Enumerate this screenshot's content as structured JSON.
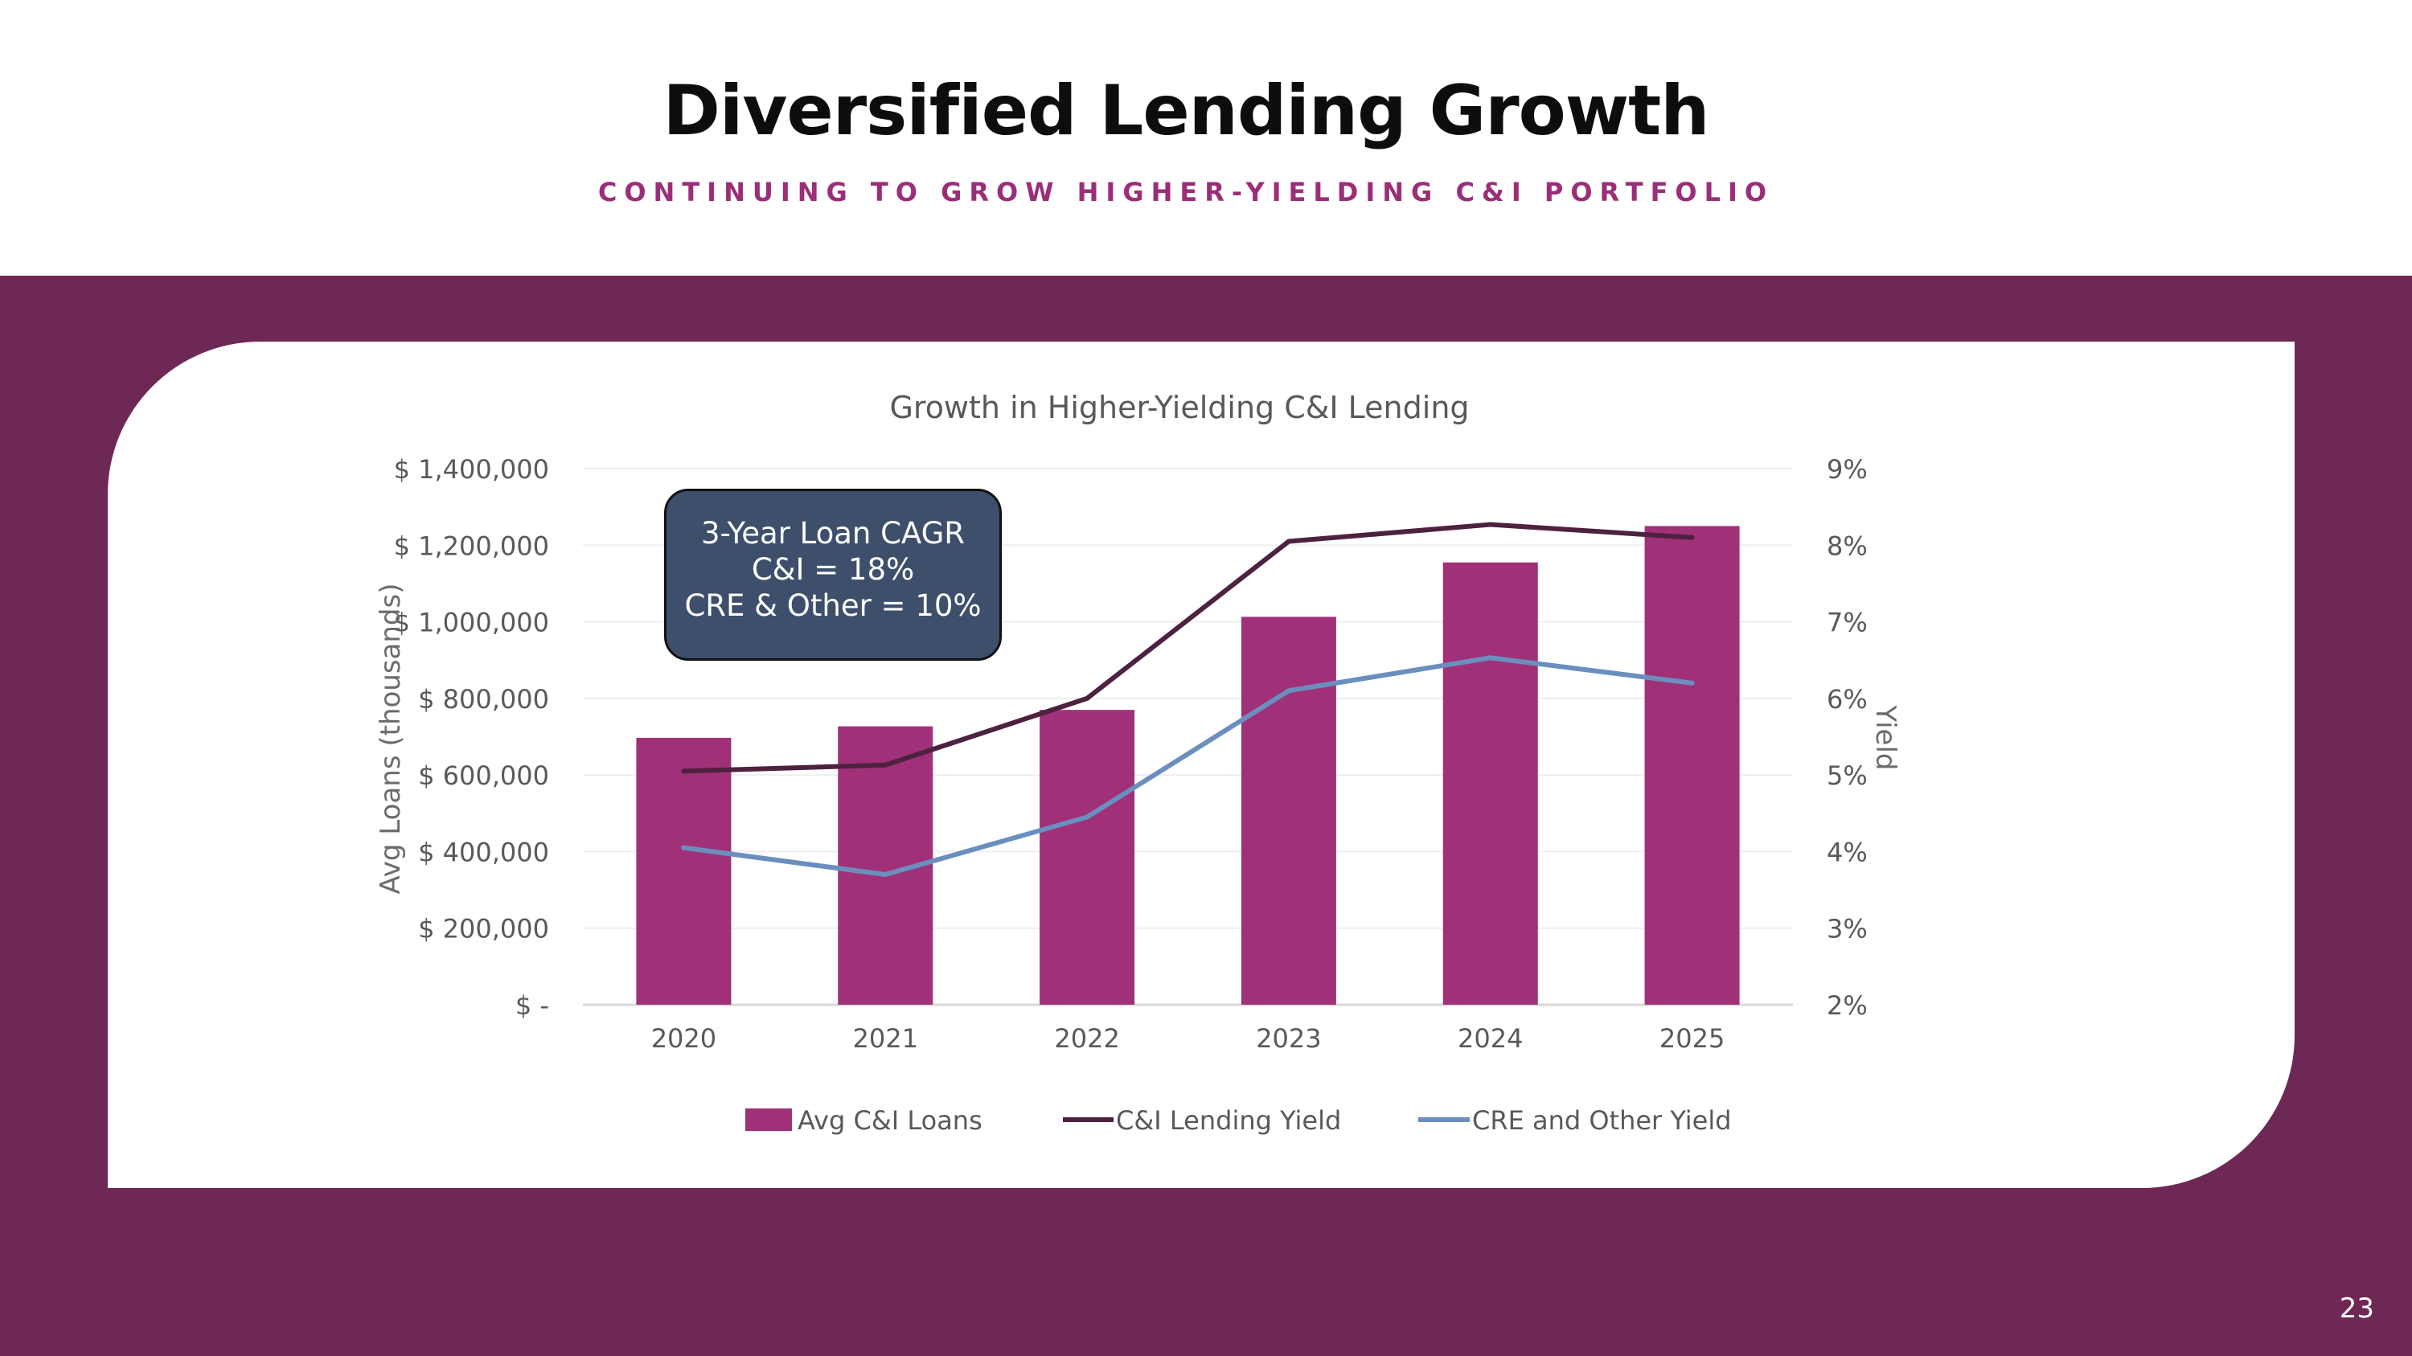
{
  "title": "Diversified Lending Growth",
  "subtitle": "CONTINUING TO GROW HIGHER-YIELDING C&I PORTFOLIO",
  "page_number": "23",
  "callout": {
    "line1": "3-Year Loan CAGR",
    "line2": "C&I = 18%",
    "line3": "CRE & Other = 10%"
  },
  "colors": {
    "band": "#6e2856",
    "bars": "#a03178",
    "ci_line": "#4e2140",
    "cre_line": "#6a8fbf",
    "callout_bg": "#3d4f6b",
    "subtitle": "#9b2e78"
  },
  "chart_data": {
    "type": "bar",
    "title": "Growth in Higher-Yielding C&I Lending",
    "categories": [
      "2020",
      "2021",
      "2022",
      "2023",
      "2024",
      "2025"
    ],
    "ylabel": "Avg Loans (thousands)",
    "ylabel_right": "Yield",
    "ylim": [
      0,
      1400000
    ],
    "ylim_right": [
      2,
      9
    ],
    "yticks": [
      "$ -",
      "$ 200,000",
      "$ 400,000",
      "$ 600,000",
      "$ 800,000",
      "$ 1,000,000",
      "$ 1,200,000",
      "$ 1,400,000"
    ],
    "yticks_right": [
      "2%",
      "3%",
      "4%",
      "5%",
      "6%",
      "7%",
      "8%",
      "9%"
    ],
    "grid": true,
    "legend_position": "bottom",
    "series": [
      {
        "name": "Avg C&I Loans",
        "type": "bar",
        "axis": "left",
        "values": [
          697000,
          727000,
          770000,
          1013000,
          1155000,
          1250000
        ]
      },
      {
        "name": "C&I Lending Yield",
        "type": "line",
        "axis": "right",
        "values": [
          5.05,
          5.13,
          6.0,
          8.05,
          8.27,
          8.1
        ]
      },
      {
        "name": "CRE and Other Yield",
        "type": "line",
        "axis": "right",
        "values": [
          4.05,
          3.7,
          4.45,
          6.1,
          6.53,
          6.2
        ]
      }
    ]
  }
}
